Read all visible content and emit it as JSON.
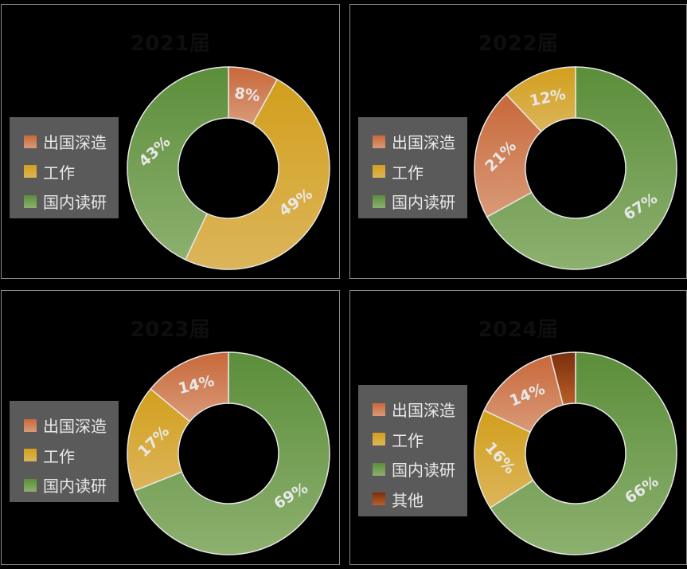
{
  "colors": {
    "出国深造": [
      "#c8683a",
      "#d99a78"
    ],
    "工作": [
      "#d29f1c",
      "#dcb55a"
    ],
    "国内读研": [
      "#5b8e3a",
      "#8db06f"
    ],
    "其他": [
      "#7a2e0c",
      "#b85f28"
    ]
  },
  "chart_data": [
    {
      "type": "pie",
      "title": "2021届",
      "categories": [
        "出国深造",
        "工作",
        "国内读研"
      ],
      "values": [
        8,
        49,
        43
      ],
      "labels": [
        "8%",
        "49%",
        "43%"
      ],
      "legend": "left"
    },
    {
      "type": "pie",
      "title": "2022届",
      "categories": [
        "国内读研",
        "出国深造",
        "工作"
      ],
      "legend_order": [
        "出国深造",
        "工作",
        "国内读研"
      ],
      "values": [
        67,
        21,
        12
      ],
      "labels": [
        "67%",
        "21%",
        "12%"
      ],
      "legend": "left"
    },
    {
      "type": "pie",
      "title": "2023届",
      "categories": [
        "国内读研",
        "工作",
        "出国深造"
      ],
      "legend_order": [
        "出国深造",
        "工作",
        "国内读研"
      ],
      "values": [
        69,
        17,
        14
      ],
      "labels": [
        "69%",
        "17%",
        "14%"
      ],
      "legend": "left"
    },
    {
      "type": "pie",
      "title": "2024届",
      "categories": [
        "国内读研",
        "工作",
        "出国深造",
        "其他"
      ],
      "legend_order": [
        "出国深造",
        "工作",
        "国内读研",
        "其他"
      ],
      "values": [
        66,
        16,
        14,
        4
      ],
      "labels": [
        "66%",
        "16%",
        "14%",
        ""
      ],
      "legend": "left"
    }
  ]
}
